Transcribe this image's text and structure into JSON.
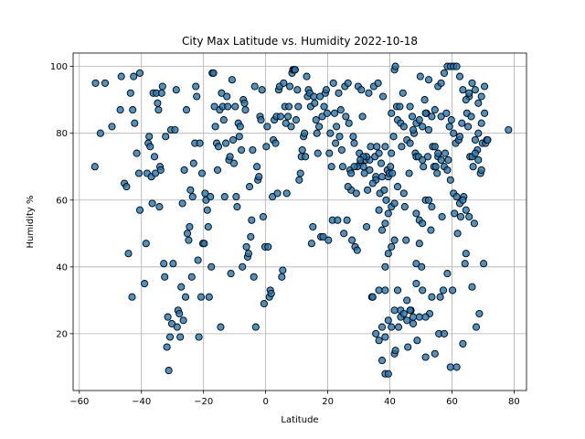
{
  "chart_data": {
    "type": "scatter",
    "title": "City Max Latitude vs. Humidity 2022-10-18",
    "xlabel": "Latitude",
    "ylabel": "Humidity %",
    "xlim": [
      -62,
      84
    ],
    "ylim": [
      3,
      104
    ],
    "xticks": [
      -60,
      -40,
      -20,
      0,
      20,
      40,
      60,
      80
    ],
    "yticks": [
      20,
      40,
      60,
      80,
      100
    ],
    "grid": true,
    "marker_color": "#1f77b4",
    "marker_edge_color": "#000000",
    "marker_alpha": 0.8,
    "points": [
      [
        -54.8,
        95
      ],
      [
        -53.2,
        80
      ],
      [
        -51.7,
        95
      ],
      [
        -55,
        70
      ],
      [
        -49.5,
        82
      ],
      [
        -46.5,
        97
      ],
      [
        -46.8,
        87
      ],
      [
        -45.5,
        65
      ],
      [
        -44.8,
        64
      ],
      [
        -44.2,
        44
      ],
      [
        -43.5,
        92
      ],
      [
        -43,
        31
      ],
      [
        -42.8,
        87
      ],
      [
        -42.5,
        97
      ],
      [
        -42.2,
        83
      ],
      [
        -41.5,
        74
      ],
      [
        -40.8,
        68
      ],
      [
        -40.5,
        57
      ],
      [
        -40.5,
        98
      ],
      [
        -39,
        35
      ],
      [
        -38.5,
        47
      ],
      [
        -38.2,
        68
      ],
      [
        -37.8,
        77
      ],
      [
        -37.5,
        79
      ],
      [
        -37.2,
        76
      ],
      [
        -36.8,
        67
      ],
      [
        -36.5,
        59
      ],
      [
        -36.2,
        92
      ],
      [
        -35.8,
        73
      ],
      [
        -35.5,
        68
      ],
      [
        -35.2,
        92
      ],
      [
        -34.8,
        89
      ],
      [
        -34.5,
        87
      ],
      [
        -34.2,
        58
      ],
      [
        -34,
        70
      ],
      [
        -33.8,
        69
      ],
      [
        -33.5,
        92
      ],
      [
        -33.2,
        94
      ],
      [
        -32.8,
        41
      ],
      [
        -32.5,
        37
      ],
      [
        -32.2,
        79
      ],
      [
        -31.8,
        16
      ],
      [
        -31.5,
        25
      ],
      [
        -31.2,
        9
      ],
      [
        -30.8,
        19
      ],
      [
        -30.5,
        81
      ],
      [
        -30.2,
        23
      ],
      [
        -29.8,
        41
      ],
      [
        -29.2,
        81
      ],
      [
        -28.8,
        93
      ],
      [
        -28.5,
        22
      ],
      [
        -28.2,
        27
      ],
      [
        -27.8,
        26
      ],
      [
        -27.5,
        19
      ],
      [
        -27.2,
        34
      ],
      [
        -26.8,
        59
      ],
      [
        -26.5,
        24
      ],
      [
        -26.2,
        69
      ],
      [
        -25.8,
        31
      ],
      [
        -25.5,
        87
      ],
      [
        -25.2,
        50
      ],
      [
        -24.8,
        48
      ],
      [
        -24.5,
        52
      ],
      [
        -24.2,
        63
      ],
      [
        -23.8,
        37
      ],
      [
        -23.5,
        61
      ],
      [
        -23.2,
        71
      ],
      [
        -22.8,
        77
      ],
      [
        -22.5,
        94
      ],
      [
        -22.2,
        91
      ],
      [
        -21.8,
        42
      ],
      [
        -21.5,
        19
      ],
      [
        -21.2,
        77
      ],
      [
        -20.8,
        31
      ],
      [
        -20.5,
        68
      ],
      [
        -20.2,
        47
      ],
      [
        -19.8,
        47
      ],
      [
        -19.5,
        62
      ],
      [
        -19.2,
        60
      ],
      [
        -18.8,
        57
      ],
      [
        -18.5,
        52
      ],
      [
        -18.2,
        31
      ],
      [
        -17.8,
        61
      ],
      [
        -17.5,
        40
      ],
      [
        -17.2,
        98
      ],
      [
        -16.8,
        98
      ],
      [
        -16.5,
        88
      ],
      [
        -16.2,
        82
      ],
      [
        -15.8,
        77
      ],
      [
        -15.5,
        69
      ],
      [
        -15.2,
        76
      ],
      [
        -14.8,
        87
      ],
      [
        -14.5,
        22
      ],
      [
        -14.2,
        92
      ],
      [
        -13.8,
        88
      ],
      [
        -13.5,
        84
      ],
      [
        -13.2,
        61
      ],
      [
        -12.8,
        77
      ],
      [
        -12.5,
        91
      ],
      [
        -12.2,
        88
      ],
      [
        -11.8,
        72
      ],
      [
        -11.5,
        73
      ],
      [
        -11.2,
        38
      ],
      [
        -10.8,
        96
      ],
      [
        -10.5,
        78
      ],
      [
        -10.2,
        71
      ],
      [
        -9.8,
        88
      ],
      [
        -9.5,
        61
      ],
      [
        -9.2,
        58
      ],
      [
        -8.8,
        83
      ],
      [
        -8.5,
        79
      ],
      [
        -8.2,
        82
      ],
      [
        -7.8,
        75
      ],
      [
        -7.5,
        40
      ],
      [
        -7.2,
        90
      ],
      [
        -6.8,
        89
      ],
      [
        -6.5,
        87
      ],
      [
        -6.2,
        46
      ],
      [
        -5.8,
        43
      ],
      [
        -5.5,
        44
      ],
      [
        -5.2,
        64
      ],
      [
        -4.8,
        49
      ],
      [
        -4.5,
        54
      ],
      [
        -4.2,
        75
      ],
      [
        -3.8,
        37
      ],
      [
        -3.5,
        94
      ],
      [
        -3.2,
        22
      ],
      [
        -2.8,
        70
      ],
      [
        -2.5,
        66
      ],
      [
        -2.2,
        67
      ],
      [
        -1.8,
        85
      ],
      [
        -1.5,
        84
      ],
      [
        -1.2,
        93
      ],
      [
        -0.8,
        55
      ],
      [
        -0.5,
        29
      ],
      [
        -0.2,
        46
      ],
      [
        0.2,
        76
      ],
      [
        0.5,
        82
      ],
      [
        0.8,
        46
      ],
      [
        1.2,
        31
      ],
      [
        1.5,
        33
      ],
      [
        1.8,
        32
      ],
      [
        2.2,
        61
      ],
      [
        2.5,
        78
      ],
      [
        2.8,
        84
      ],
      [
        3.2,
        77
      ],
      [
        3.5,
        85
      ],
      [
        3.8,
        62
      ],
      [
        4.2,
        93
      ],
      [
        4.5,
        94
      ],
      [
        4.8,
        85
      ],
      [
        5.2,
        37
      ],
      [
        5.5,
        39
      ],
      [
        5.8,
        95
      ],
      [
        6.2,
        88
      ],
      [
        6.5,
        83
      ],
      [
        6.8,
        62
      ],
      [
        7.2,
        85
      ],
      [
        7.5,
        88
      ],
      [
        7.8,
        94
      ],
      [
        8.2,
        82
      ],
      [
        8.5,
        98
      ],
      [
        8.8,
        99
      ],
      [
        9.2,
        99
      ],
      [
        9.5,
        99
      ],
      [
        9.8,
        84
      ],
      [
        10.2,
        93
      ],
      [
        10.5,
        88
      ],
      [
        10.8,
        66
      ],
      [
        11.2,
        68
      ],
      [
        11.5,
        73
      ],
      [
        11.8,
        75
      ],
      [
        12.2,
        79
      ],
      [
        12.5,
        80
      ],
      [
        12.8,
        73
      ],
      [
        13.2,
        97
      ],
      [
        13.5,
        91
      ],
      [
        13.8,
        93
      ],
      [
        14.2,
        92
      ],
      [
        14.5,
        88
      ],
      [
        14.8,
        47
      ],
      [
        15.2,
        52
      ],
      [
        15.5,
        91
      ],
      [
        15.8,
        89
      ],
      [
        16.2,
        84
      ],
      [
        16.5,
        80
      ],
      [
        16.8,
        74
      ],
      [
        17.2,
        82
      ],
      [
        17.5,
        91
      ],
      [
        17.8,
        49
      ],
      [
        18.2,
        85
      ],
      [
        18.5,
        49
      ],
      [
        18.8,
        88
      ],
      [
        19.2,
        92
      ],
      [
        19.5,
        93
      ],
      [
        19.8,
        86
      ],
      [
        20.2,
        48
      ],
      [
        20.5,
        74
      ],
      [
        20.8,
        80
      ],
      [
        21.2,
        70
      ],
      [
        21.5,
        54
      ],
      [
        21.8,
        95
      ],
      [
        22.2,
        86
      ],
      [
        22.5,
        77
      ],
      [
        22.8,
        82
      ],
      [
        23.2,
        54
      ],
      [
        23.5,
        92
      ],
      [
        23.8,
        79
      ],
      [
        24.2,
        87
      ],
      [
        24.5,
        75
      ],
      [
        24.8,
        70
      ],
      [
        25.2,
        50
      ],
      [
        25.5,
        94
      ],
      [
        25.8,
        85
      ],
      [
        26.2,
        54
      ],
      [
        26.5,
        95
      ],
      [
        26.8,
        83
      ],
      [
        27.2,
        69
      ],
      [
        27.5,
        63
      ],
      [
        27.8,
        48
      ],
      [
        28.2,
        79
      ],
      [
        28.5,
        77
      ],
      [
        28.8,
        46
      ],
      [
        29.2,
        62
      ],
      [
        29.5,
        45
      ],
      [
        29.8,
        94
      ],
      [
        30.2,
        74
      ],
      [
        30.5,
        71
      ],
      [
        30.8,
        93
      ],
      [
        31.2,
        85
      ],
      [
        31.5,
        70
      ],
      [
        31.8,
        68
      ],
      [
        32.2,
        72
      ],
      [
        32.5,
        52
      ],
      [
        32.8,
        63
      ],
      [
        33.2,
        92
      ],
      [
        33.5,
        69
      ],
      [
        33.8,
        76
      ],
      [
        34.2,
        31
      ],
      [
        34.5,
        31
      ],
      [
        34.8,
        94
      ],
      [
        35.2,
        73
      ],
      [
        35.5,
        67
      ],
      [
        35.8,
        76
      ],
      [
        36.2,
        95
      ],
      [
        36.5,
        74
      ],
      [
        36.8,
        62
      ],
      [
        37.2,
        71
      ],
      [
        37.5,
        67
      ],
      [
        37.8,
        91
      ],
      [
        38.2,
        63
      ],
      [
        38.5,
        76
      ],
      [
        38.8,
        60
      ],
      [
        39.2,
        69
      ],
      [
        39.5,
        67
      ],
      [
        39.8,
        68
      ],
      [
        40.2,
        70
      ],
      [
        40.5,
        74
      ],
      [
        40.8,
        68
      ],
      [
        41.2,
        79
      ],
      [
        41.5,
        14
      ],
      [
        41.8,
        15
      ],
      [
        42.2,
        88
      ],
      [
        42.5,
        64
      ],
      [
        42.8,
        22
      ],
      [
        43.2,
        88
      ],
      [
        43.5,
        25
      ],
      [
        43.8,
        76
      ],
      [
        44.2,
        92
      ],
      [
        44.5,
        62
      ],
      [
        44.8,
        58
      ],
      [
        45.2,
        48
      ],
      [
        45.5,
        30
      ],
      [
        45.8,
        16
      ],
      [
        46.2,
        68
      ],
      [
        46.5,
        88
      ],
      [
        46.8,
        27
      ],
      [
        47.2,
        85
      ],
      [
        47.5,
        23
      ],
      [
        47.8,
        80
      ],
      [
        48.2,
        74
      ],
      [
        48.5,
        73
      ],
      [
        48.8,
        18
      ],
      [
        49.2,
        73
      ],
      [
        49.5,
        47
      ],
      [
        49.8,
        97
      ],
      [
        50.2,
        40
      ],
      [
        50.5,
        72
      ],
      [
        50.8,
        70
      ],
      [
        51.2,
        90
      ],
      [
        51.5,
        13
      ],
      [
        51.8,
        86
      ],
      [
        52.2,
        73
      ],
      [
        52.5,
        96
      ],
      [
        52.8,
        26
      ],
      [
        53.2,
        51
      ],
      [
        53.5,
        31
      ],
      [
        53.8,
        76
      ],
      [
        54.2,
        70
      ],
      [
        54.5,
        14
      ],
      [
        54.8,
        70
      ],
      [
        55.2,
        68
      ],
      [
        55.5,
        73
      ],
      [
        55.8,
        20
      ],
      [
        56.2,
        31
      ],
      [
        56.5,
        85
      ],
      [
        56.8,
        55
      ],
      [
        57.2,
        33
      ],
      [
        57.5,
        20
      ],
      [
        57.8,
        74
      ],
      [
        58.2,
        86
      ],
      [
        58.5,
        38
      ],
      [
        58.8,
        72
      ],
      [
        59.2,
        82
      ],
      [
        59.5,
        10
      ],
      [
        59.8,
        84
      ],
      [
        60.2,
        33
      ],
      [
        60.5,
        80
      ],
      [
        60.8,
        56
      ],
      [
        61.2,
        77
      ],
      [
        61.5,
        10
      ],
      [
        61.8,
        50
      ],
      [
        62.2,
        78
      ],
      [
        62.5,
        79
      ],
      [
        62.8,
        55
      ],
      [
        63.2,
        83
      ],
      [
        63.5,
        17
      ],
      [
        63.8,
        61
      ],
      [
        64.2,
        41
      ],
      [
        64.5,
        44
      ],
      [
        64.8,
        86
      ],
      [
        65.2,
        82
      ],
      [
        65.5,
        91
      ],
      [
        65.8,
        73
      ],
      [
        66.2,
        85
      ],
      [
        66.5,
        34
      ],
      [
        66.8,
        70
      ],
      [
        67.2,
        53
      ],
      [
        67.5,
        78
      ],
      [
        67.8,
        22
      ],
      [
        68.2,
        75
      ],
      [
        68.5,
        80
      ],
      [
        68.8,
        26
      ],
      [
        69.2,
        68
      ],
      [
        69.5,
        83
      ],
      [
        69.8,
        77
      ],
      [
        70.2,
        41
      ],
      [
        70.5,
        86
      ],
      [
        70.8,
        77
      ],
      [
        71.2,
        78
      ],
      [
        71.5,
        78
      ],
      [
        78.2,
        81
      ],
      [
        40.5,
        86
      ],
      [
        41.5,
        99
      ],
      [
        41.8,
        100
      ],
      [
        42.5,
        84
      ],
      [
        43.5,
        83
      ],
      [
        44.5,
        82
      ],
      [
        45.5,
        78
      ],
      [
        46.5,
        77
      ],
      [
        47.5,
        81
      ],
      [
        48.5,
        83
      ],
      [
        49.5,
        84
      ],
      [
        50.5,
        82
      ],
      [
        51.5,
        86
      ],
      [
        52.5,
        81
      ],
      [
        53.5,
        85
      ],
      [
        54.5,
        87
      ],
      [
        55.5,
        94
      ],
      [
        56.5,
        95
      ],
      [
        57.5,
        98
      ],
      [
        58.5,
        100
      ],
      [
        59.5,
        100
      ],
      [
        60.5,
        100
      ],
      [
        61.5,
        100
      ],
      [
        62.5,
        97
      ],
      [
        63.5,
        93
      ],
      [
        64.5,
        90
      ],
      [
        65.5,
        92
      ],
      [
        66.5,
        95
      ],
      [
        67.5,
        93
      ],
      [
        68.5,
        89
      ],
      [
        69.5,
        91
      ],
      [
        70.5,
        94
      ],
      [
        54.5,
        76
      ],
      [
        55.5,
        74
      ],
      [
        56.5,
        72
      ],
      [
        57.5,
        70
      ],
      [
        58.5,
        69
      ],
      [
        59.5,
        66
      ],
      [
        60.5,
        62
      ],
      [
        61.5,
        61
      ],
      [
        62.5,
        59
      ],
      [
        63.5,
        60
      ],
      [
        64.5,
        57
      ],
      [
        65.5,
        55
      ],
      [
        66.5,
        73
      ],
      [
        67.5,
        74
      ],
      [
        68.5,
        72
      ],
      [
        69.5,
        69
      ],
      [
        48.5,
        56
      ],
      [
        49.5,
        54
      ],
      [
        50.5,
        53
      ],
      [
        51.5,
        60
      ],
      [
        52.5,
        60
      ],
      [
        53.5,
        58
      ],
      [
        48.5,
        41
      ],
      [
        49.5,
        25
      ],
      [
        50.5,
        33
      ],
      [
        51.5,
        25
      ],
      [
        48.5,
        35
      ],
      [
        38.5,
        8
      ],
      [
        39.5,
        8
      ],
      [
        37.5,
        12
      ],
      [
        38.5,
        19
      ],
      [
        36.5,
        18
      ],
      [
        37.5,
        22
      ],
      [
        35.5,
        20
      ],
      [
        36.5,
        33
      ],
      [
        38.5,
        33
      ],
      [
        39.5,
        24
      ],
      [
        40.5,
        22
      ],
      [
        41.5,
        27
      ],
      [
        42.5,
        33
      ],
      [
        43.5,
        27
      ],
      [
        44.5,
        26
      ],
      [
        45.5,
        24
      ],
      [
        46.5,
        27
      ],
      [
        47.5,
        25
      ],
      [
        38.5,
        40
      ],
      [
        39.5,
        44
      ],
      [
        40.5,
        46
      ],
      [
        41.5,
        48
      ],
      [
        37.5,
        51
      ],
      [
        38.5,
        53
      ],
      [
        39.5,
        56
      ],
      [
        40.5,
        58
      ],
      [
        41.5,
        59
      ],
      [
        36.5,
        57
      ],
      [
        35.5,
        66
      ],
      [
        34.5,
        65
      ],
      [
        33.5,
        72
      ],
      [
        32.5,
        73
      ],
      [
        31.5,
        73
      ],
      [
        30.5,
        72
      ],
      [
        29.5,
        70
      ],
      [
        28.5,
        70
      ],
      [
        27.5,
        68
      ],
      [
        26.5,
        64
      ]
    ]
  }
}
